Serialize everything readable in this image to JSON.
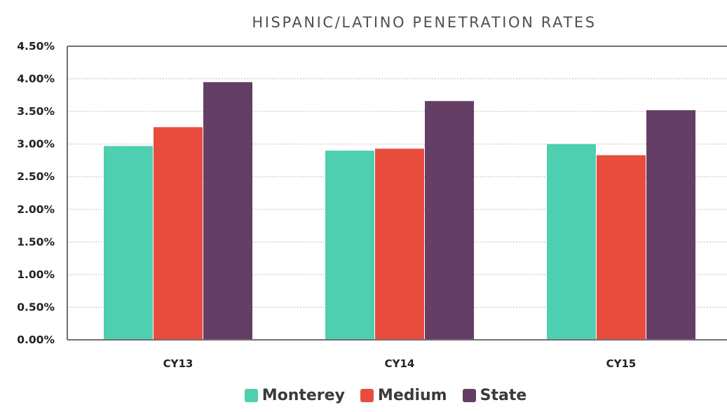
{
  "chart_data": {
    "type": "bar",
    "title": "HISPANIC/LATINO PENETRATION RATES",
    "categories": [
      "CY13",
      "CY14",
      "CY15"
    ],
    "series": [
      {
        "name": "Monterey",
        "color": "#4ecfb0",
        "values": [
          2.97,
          2.9,
          3.0
        ]
      },
      {
        "name": "Medium",
        "color": "#e84c3d",
        "values": [
          3.26,
          2.93,
          2.83
        ]
      },
      {
        "name": "State",
        "color": "#653e66",
        "values": [
          3.95,
          3.66,
          3.52
        ]
      }
    ],
    "ylim": [
      0,
      4.5
    ],
    "yticks": [
      0,
      0.5,
      1.0,
      1.5,
      2.0,
      2.5,
      3.0,
      3.5,
      4.0,
      4.5
    ],
    "ytick_labels": [
      "0.00%",
      "0.50%",
      "1.00%",
      "1.50%",
      "2.00%",
      "2.50%",
      "3.00%",
      "3.50%",
      "4.00%",
      "4.50%"
    ],
    "grid": true,
    "legend_position": "bottom"
  }
}
